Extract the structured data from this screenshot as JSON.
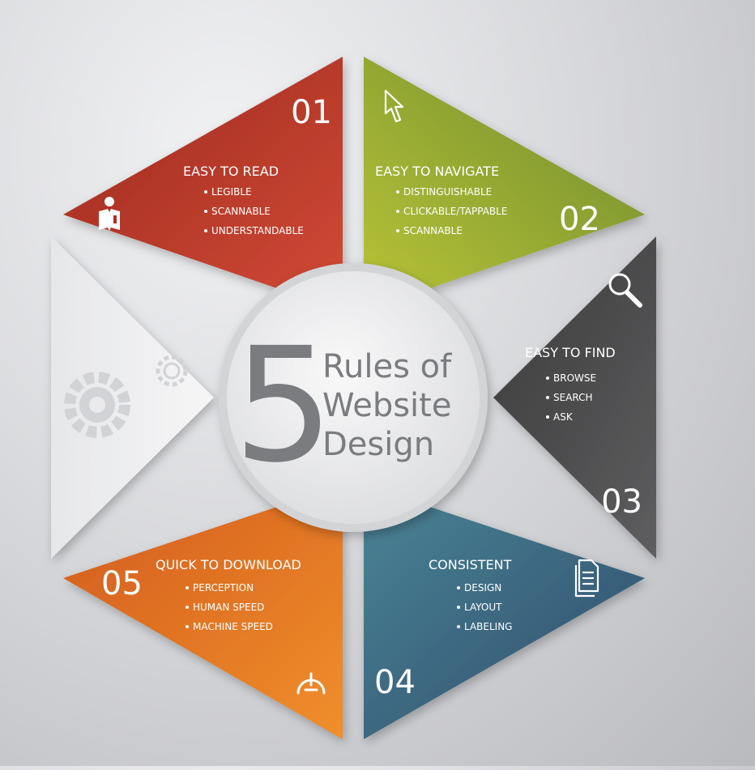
{
  "center": {
    "number": "5",
    "line1": "Rules of",
    "line2": "Website",
    "line3": "Design"
  },
  "segments": [
    {
      "number": "01",
      "title": "EASY TO READ",
      "items": [
        "LEGIBLE",
        "SCANNABLE",
        "UNDERSTANDABLE"
      ],
      "icon": "reader-icon",
      "color_light": "#d24a35",
      "color_dark": "#9c2a20"
    },
    {
      "number": "02",
      "title": "EASY TO NAVIGATE",
      "items": [
        "DISTINGUISHABLE",
        "CLICKABLE/TAPPABLE",
        "SCANNABLE"
      ],
      "icon": "cursor-icon",
      "color_light": "#b9c437",
      "color_dark": "#6d8a2e"
    },
    {
      "number": "03",
      "title": "EASY TO FIND",
      "items": [
        "BROWSE",
        "SEARCH",
        "ASK"
      ],
      "icon": "magnifier-icon",
      "color_light": "#5a5a5b",
      "color_dark": "#3a3a3b"
    },
    {
      "number": "04",
      "title": "CONSISTENT",
      "items": [
        "DESIGN",
        "LAYOUT",
        "LABELING"
      ],
      "icon": "document-icon",
      "color_light": "#457d92",
      "color_dark": "#2e4c6b"
    },
    {
      "number": "05",
      "title": "QUICK TO DOWNLOAD",
      "items": [
        "PERCEPTION",
        "HUMAN SPEED",
        "MACHINE SPEED"
      ],
      "icon": "speedometer-icon",
      "color_light": "#ef8a2a",
      "color_dark": "#d25a1c"
    }
  ],
  "placeholder_segment": {
    "icon": "gears-icon"
  }
}
